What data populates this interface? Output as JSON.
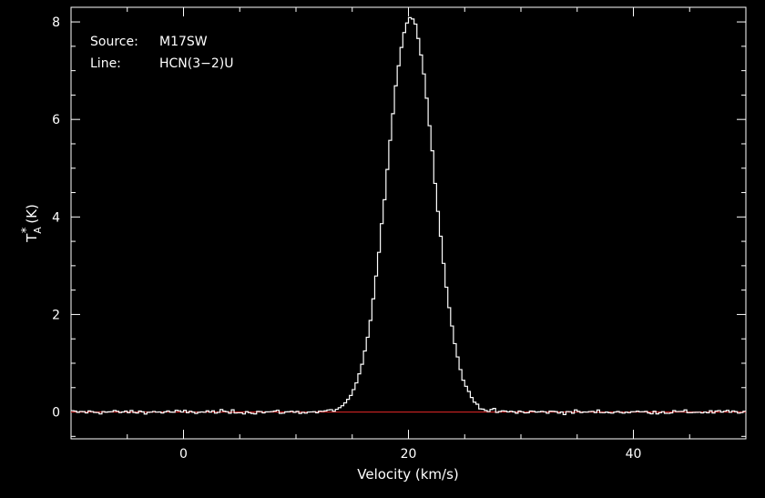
{
  "chart_data": {
    "type": "line",
    "style": "histogram-step",
    "xlabel": "Velocity (km/s)",
    "ylabel_main": "T",
    "ylabel_sub": "A",
    "ylabel_sup": "*",
    "ylabel_unit": "(K)",
    "xlim": [
      -10,
      50
    ],
    "ylim": [
      -0.55,
      8.3
    ],
    "xticks": [
      0,
      20,
      40
    ],
    "xtick_labels": [
      "0",
      "20",
      "40"
    ],
    "yticks": [
      0,
      2,
      4,
      6,
      8
    ],
    "ytick_labels": [
      "0",
      "2",
      "4",
      "6",
      "8"
    ],
    "baseline": 0,
    "series": [
      {
        "color": "#ffffff",
        "profile": "gaussian",
        "peak": 8.1,
        "center": 20.2,
        "sigma": 2.1,
        "channel_width": 0.25,
        "x_range": [
          -10,
          50
        ],
        "noise_rms": 0.035
      }
    ],
    "baseline_color": "#cc2222"
  },
  "info": {
    "source_label": "Source:",
    "source_value": "M17SW",
    "line_label": "Line:",
    "line_value": "HCN(3−2)U"
  }
}
